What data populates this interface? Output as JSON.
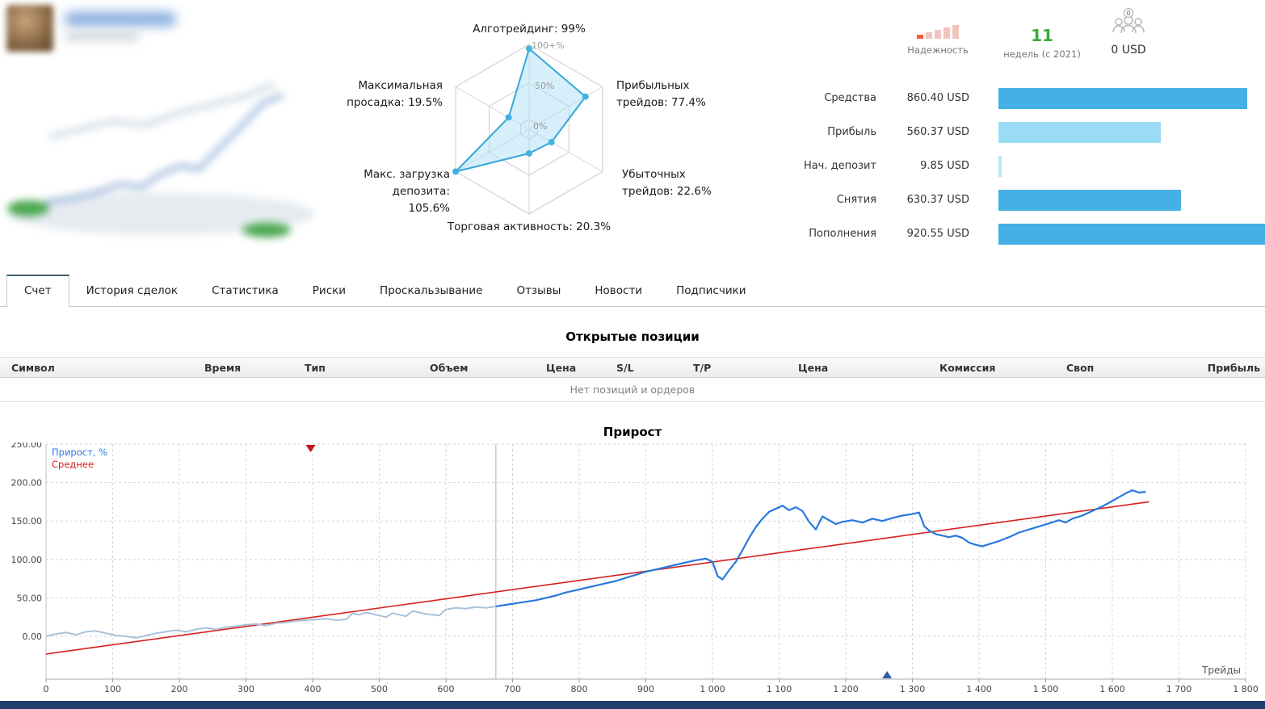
{
  "summary": {
    "reliability": {
      "label": "Надежность",
      "bars": 5,
      "active_bars": 1,
      "active_color": "#ff5a2d",
      "inactive_color": "#f2c4bd"
    },
    "weeks": {
      "value": "11",
      "label": "недель (с 2021)",
      "color": "#3aaa35"
    },
    "price": {
      "badge": "0",
      "value": "0 USD"
    },
    "stats": [
      {
        "label": "Средства",
        "value": "860.40 USD",
        "amount": 860.4,
        "color": "#44b0e3"
      },
      {
        "label": "Прибыль",
        "value": "560.37 USD",
        "amount": 560.37,
        "color": "#9adcf3"
      },
      {
        "label": "Нач. депозит",
        "value": "9.85 USD",
        "amount": 9.85,
        "color": "#bfe6f5"
      },
      {
        "label": "Снятия",
        "value": "630.37 USD",
        "amount": 630.37,
        "color": "#44b0e3"
      },
      {
        "label": "Пополнения",
        "value": "920.55 USD",
        "amount": 920.55,
        "color": "#44b0e3"
      }
    ]
  },
  "tabs": {
    "items": [
      "Счет",
      "История сделок",
      "Статистика",
      "Риски",
      "Проскальзывание",
      "Отзывы",
      "Новости",
      "Подписчики"
    ],
    "active": 0
  },
  "positions": {
    "title": "Открытые позиции",
    "columns": [
      "Символ",
      "Время",
      "Тип",
      "Объем",
      "Цена",
      "S/L",
      "T/P",
      "Цена",
      "Комиссия",
      "Своп",
      "Прибыль"
    ],
    "empty_text": "Нет позиций и ордеров"
  },
  "growth": {
    "title": "Прирост",
    "xaxis_label": "Трейды",
    "legend": [
      {
        "label": "Прирост, %",
        "color": "#2878dd"
      },
      {
        "label": "Среднее",
        "color": "#d62020"
      }
    ]
  },
  "chart_data": [
    {
      "type": "radar",
      "axes": [
        "Алготрейдинг",
        "Прибыльных трейдов",
        "Убыточных трейдов",
        "Торговая активность",
        "Макс. загрузка депозита",
        "Максимальная просадка"
      ],
      "values": [
        99,
        77.4,
        22.6,
        20.3,
        105.6,
        19.5
      ],
      "ring_labels": [
        "100+%",
        "50%",
        "0%"
      ],
      "fill_color": "rgba(173,224,245,0.5)",
      "stroke_color": "#35a7d8",
      "label_texts": {
        "algo": "Алготрейдинг: 99%",
        "profitable": "Прибыльных\nтрейдов: 77.4%",
        "losing": "Убыточных\nтрейдов: 22.6%",
        "activity": "Торговая активность: 20.3%",
        "load": "Макс. загрузка\nдепозита:\n105.6%",
        "drawdown": "Максимальная\nпросадка: 19.5%"
      }
    },
    {
      "type": "line",
      "title": "Прирост",
      "xlabel": "Трейды",
      "xlim": [
        0,
        1800
      ],
      "ylim": [
        -56,
        250
      ],
      "x_tick_labels": [
        "0",
        "100",
        "200",
        "300",
        "400",
        "500",
        "600",
        "700",
        "800",
        "900",
        "1 000",
        "1 100",
        "1 200",
        "1 300",
        "1 400",
        "1 500",
        "1 600",
        "1 700",
        "1 800"
      ],
      "y_tick_labels": [
        "0.00",
        "50.00",
        "100.00",
        "150.00",
        "200.00",
        "250.00"
      ],
      "divider_x": 675,
      "series": [
        {
          "name": "Прирост, %",
          "split_x": 675,
          "color_before": "#a9c2da",
          "color_after": "#2878dd",
          "points": [
            [
              0,
              0
            ],
            [
              15,
              3
            ],
            [
              30,
              5
            ],
            [
              45,
              2
            ],
            [
              60,
              6
            ],
            [
              75,
              7
            ],
            [
              90,
              4
            ],
            [
              105,
              1
            ],
            [
              120,
              0
            ],
            [
              135,
              -2
            ],
            [
              150,
              1
            ],
            [
              165,
              4
            ],
            [
              180,
              6
            ],
            [
              195,
              8
            ],
            [
              210,
              6
            ],
            [
              225,
              9
            ],
            [
              240,
              11
            ],
            [
              255,
              9
            ],
            [
              270,
              12
            ],
            [
              285,
              13
            ],
            [
              300,
              15
            ],
            [
              315,
              16
            ],
            [
              330,
              14
            ],
            [
              345,
              17
            ],
            [
              360,
              18
            ],
            [
              375,
              20
            ],
            [
              390,
              21
            ],
            [
              405,
              22
            ],
            [
              420,
              23
            ],
            [
              435,
              21
            ],
            [
              450,
              22
            ],
            [
              460,
              30
            ],
            [
              470,
              28
            ],
            [
              480,
              31
            ],
            [
              490,
              29
            ],
            [
              500,
              27
            ],
            [
              510,
              25
            ],
            [
              520,
              30
            ],
            [
              530,
              28
            ],
            [
              540,
              26
            ],
            [
              550,
              33
            ],
            [
              560,
              31
            ],
            [
              570,
              29
            ],
            [
              580,
              28
            ],
            [
              590,
              27
            ],
            [
              600,
              35
            ],
            [
              615,
              37
            ],
            [
              630,
              36
            ],
            [
              645,
              38
            ],
            [
              660,
              37
            ],
            [
              675,
              39
            ],
            [
              690,
              41
            ],
            [
              705,
              43
            ],
            [
              720,
              45
            ],
            [
              735,
              47
            ],
            [
              750,
              50
            ],
            [
              765,
              53
            ],
            [
              780,
              57
            ],
            [
              795,
              60
            ],
            [
              810,
              63
            ],
            [
              825,
              66
            ],
            [
              840,
              69
            ],
            [
              855,
              72
            ],
            [
              870,
              76
            ],
            [
              885,
              80
            ],
            [
              900,
              84
            ],
            [
              915,
              87
            ],
            [
              930,
              90
            ],
            [
              945,
              93
            ],
            [
              960,
              96
            ],
            [
              975,
              99
            ],
            [
              990,
              101
            ],
            [
              1000,
              97
            ],
            [
              1008,
              78
            ],
            [
              1015,
              74
            ],
            [
              1025,
              86
            ],
            [
              1035,
              97
            ],
            [
              1045,
              112
            ],
            [
              1055,
              128
            ],
            [
              1065,
              142
            ],
            [
              1075,
              153
            ],
            [
              1085,
              162
            ],
            [
              1095,
              166
            ],
            [
              1105,
              170
            ],
            [
              1115,
              164
            ],
            [
              1125,
              168
            ],
            [
              1135,
              163
            ],
            [
              1145,
              149
            ],
            [
              1155,
              139
            ],
            [
              1165,
              156
            ],
            [
              1175,
              151
            ],
            [
              1185,
              146
            ],
            [
              1195,
              149
            ],
            [
              1210,
              151
            ],
            [
              1225,
              148
            ],
            [
              1240,
              153
            ],
            [
              1255,
              150
            ],
            [
              1270,
              154
            ],
            [
              1285,
              157
            ],
            [
              1300,
              159
            ],
            [
              1310,
              161
            ],
            [
              1318,
              143
            ],
            [
              1326,
              137
            ],
            [
              1335,
              133
            ],
            [
              1345,
              131
            ],
            [
              1355,
              129
            ],
            [
              1365,
              131
            ],
            [
              1375,
              128
            ],
            [
              1385,
              122
            ],
            [
              1395,
              119
            ],
            [
              1405,
              117
            ],
            [
              1415,
              120
            ],
            [
              1430,
              124
            ],
            [
              1445,
              129
            ],
            [
              1460,
              135
            ],
            [
              1475,
              139
            ],
            [
              1490,
              143
            ],
            [
              1505,
              147
            ],
            [
              1520,
              151
            ],
            [
              1530,
              148
            ],
            [
              1540,
              153
            ],
            [
              1555,
              157
            ],
            [
              1570,
              163
            ],
            [
              1585,
              169
            ],
            [
              1600,
              176
            ],
            [
              1610,
              181
            ],
            [
              1620,
              186
            ],
            [
              1630,
              190
            ],
            [
              1640,
              187
            ],
            [
              1650,
              188
            ]
          ]
        },
        {
          "name": "Среднее",
          "color": "#d62020",
          "points": [
            [
              0,
              -23
            ],
            [
              1655,
              175
            ]
          ]
        }
      ],
      "markers": [
        {
          "x": 397,
          "position": "top",
          "shape": "triangle-down",
          "color": "#c41414"
        },
        {
          "x": 1262,
          "position": "bottom",
          "shape": "triangle-up",
          "color": "#2a5fa5"
        }
      ]
    }
  ]
}
